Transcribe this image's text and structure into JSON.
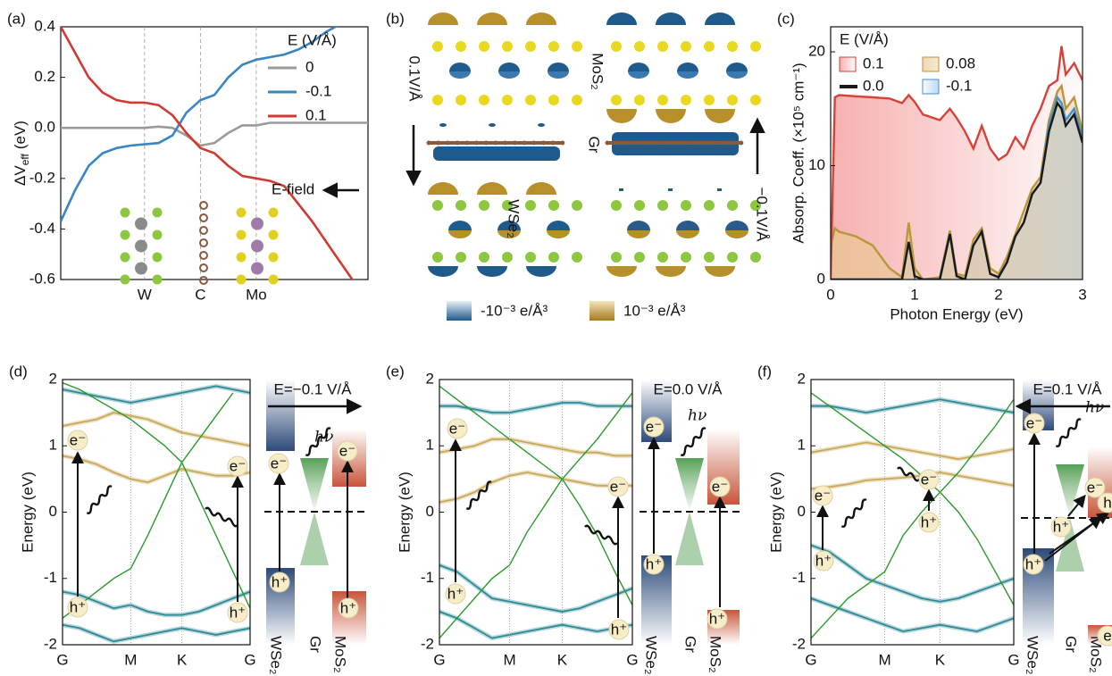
{
  "chart_data": [
    {
      "type": "line",
      "label": "(a)",
      "y_label": [
        "ΔV",
        "eff",
        "(eV)"
      ],
      "categories": [
        null,
        null,
        null,
        null,
        null,
        null,
        "W",
        null,
        null,
        null,
        "C",
        null,
        null,
        null,
        "Mo",
        null,
        null,
        null,
        null,
        null,
        null,
        null,
        null
      ],
      "ylim": [
        -0.6,
        0.4
      ],
      "yticks": [
        -0.6,
        -0.4,
        -0.2,
        {
          "value": 0,
          "label": "0.0"
        },
        0.2,
        0.4
      ],
      "legend": "upper right",
      "legend_title": "E (V/Å)",
      "annotation": "E-field",
      "series": [
        {
          "name": "0",
          "color": "#9a9a9a",
          "values": [
            0.0,
            0.0,
            0.0,
            0.0,
            0.0,
            0.0,
            0.0,
            0.005,
            0.0,
            -0.03,
            -0.07,
            -0.06,
            -0.02,
            0.01,
            0.01,
            0.02,
            0.02,
            0.02,
            0.02,
            0.02,
            0.02,
            0.02,
            0.02
          ]
        },
        {
          "name": "-0.1",
          "color": "#3a86c0",
          "values": [
            -0.37,
            -0.25,
            -0.15,
            -0.1,
            -0.08,
            -0.07,
            -0.065,
            -0.06,
            -0.03,
            0.06,
            0.11,
            0.13,
            0.2,
            0.25,
            0.27,
            0.28,
            0.29,
            0.31,
            0.34,
            0.38,
            0.41,
            null,
            null
          ]
        },
        {
          "name": "0.1",
          "color": "#d03a34",
          "values": [
            0.4,
            0.3,
            0.2,
            0.14,
            0.11,
            0.1,
            0.1,
            0.09,
            0.05,
            -0.02,
            -0.08,
            -0.1,
            -0.15,
            -0.19,
            -0.2,
            -0.21,
            -0.23,
            -0.3,
            -0.37,
            -0.45,
            -0.53,
            -0.61,
            null
          ]
        }
      ]
    },
    {
      "type": "area",
      "label": "(c)",
      "x_label": "Photon Energy (eV)",
      "y_label": "Absorp. Coeff. (×10⁵ cm⁻¹)",
      "x": [
        0,
        0.05,
        0.1,
        0.3,
        0.5,
        0.7,
        0.85,
        0.93,
        1.0,
        1.1,
        1.3,
        1.42,
        1.5,
        1.6,
        1.7,
        1.8,
        1.9,
        2.0,
        2.1,
        2.2,
        2.3,
        2.4,
        2.5,
        2.6,
        2.7,
        2.75,
        2.8,
        2.9,
        3.0
      ],
      "xlim": [
        0,
        3
      ],
      "xticks": [
        0,
        1,
        2,
        3
      ],
      "ylim": [
        0,
        22.2
      ],
      "yticks": [
        0,
        10,
        20
      ],
      "legend": "upper left",
      "legend_title": "E (V/Å)",
      "series": [
        {
          "name": "0.1",
          "color": "#d8413a",
          "fill": true,
          "values": [
            0,
            16,
            16.2,
            16.1,
            16,
            15.9,
            15.5,
            16.2,
            15.6,
            14.5,
            14,
            15,
            14.2,
            13,
            11.5,
            13.5,
            11.5,
            10.5,
            11,
            12.5,
            11.5,
            13.5,
            15,
            17,
            17.5,
            20.5,
            18,
            19,
            17.5
          ]
        },
        {
          "name": "0.08",
          "color": "#b8963a",
          "fill": true,
          "values": [
            3,
            4.5,
            4.2,
            3.8,
            3,
            1,
            0.2,
            5,
            1,
            0,
            0.2,
            4.3,
            0.5,
            0.3,
            3.5,
            4.5,
            1,
            0.5,
            2,
            4,
            6,
            8,
            9,
            14,
            16.5,
            17,
            15,
            16,
            13
          ]
        },
        {
          "name": "0.0",
          "color": "#1a1a1a",
          "fill": false,
          "values": [
            0,
            0,
            0,
            0,
            0,
            0,
            0,
            3.3,
            0.3,
            0,
            0,
            4,
            0.3,
            0,
            3,
            4.2,
            0.5,
            0.2,
            1.5,
            3.8,
            5,
            7.5,
            8.5,
            13,
            15.5,
            15,
            13.5,
            14.5,
            12
          ]
        },
        {
          "name": "-0.1",
          "color": "#4a8fc8",
          "fill": true,
          "values": [
            0,
            0,
            0,
            0,
            0,
            0,
            0,
            3.3,
            0.3,
            0,
            0,
            4,
            0.3,
            0,
            3,
            4.2,
            0.5,
            0.2,
            1.5,
            3.8,
            5,
            7.5,
            8.5,
            13.5,
            16,
            15.5,
            14,
            15,
            12.5
          ]
        }
      ]
    },
    {
      "type": "band",
      "label": "(d)",
      "y_label": "Energy (eV)",
      "categories": [
        "G",
        null,
        null,
        null,
        "M",
        null,
        null,
        "K",
        null,
        null,
        null,
        "G"
      ],
      "ylim": [
        -2,
        2
      ],
      "yticks": [
        -2,
        -1,
        0,
        1,
        2
      ],
      "field_label": "E=−0.1 V/Å",
      "field_color": "#1f3a6e",
      "photon": "hν",
      "materials": [
        "WSe₂",
        "Gr",
        "MoS₂"
      ],
      "carriers": [
        "e⁻",
        "h⁺",
        "e⁻",
        "h⁺",
        "e⁻",
        "h⁺",
        "e⁻",
        "h⁺"
      ],
      "series": [
        {
          "color": "#2e8a96",
          "values": [
            -1.2,
            -1.25,
            -1.35,
            -1.45,
            -1.4,
            -1.5,
            -1.55,
            -1.55,
            -1.5,
            -1.4,
            -1.3,
            -1.2
          ]
        },
        {
          "color": "#2e8a96",
          "values": [
            -1.7,
            -1.75,
            -1.85,
            -1.95,
            -1.9,
            -1.85,
            -1.8,
            -1.75,
            -1.8,
            -1.85,
            -1.8,
            -1.75
          ]
        },
        {
          "color": "#c9a95a",
          "values": [
            0.85,
            0.8,
            0.72,
            0.6,
            0.5,
            0.45,
            0.55,
            0.65,
            0.6,
            0.55,
            0.55,
            0.6
          ]
        },
        {
          "color": "#c9a95a",
          "values": [
            1.3,
            1.35,
            1.4,
            1.5,
            1.45,
            1.4,
            1.3,
            1.2,
            1.15,
            1.1,
            1.05,
            1.0
          ]
        },
        {
          "color": "#2e8a96",
          "values": [
            1.85,
            1.8,
            1.75,
            1.7,
            1.65,
            1.7,
            1.75,
            1.8,
            1.85,
            1.9,
            1.85,
            1.8
          ]
        },
        {
          "color": "#2a9a2a",
          "values": [
            -1.6,
            -1.4,
            -1.2,
            -1.0,
            -0.85,
            -0.35,
            0.2,
            0.75,
            0.2,
            -0.35,
            -0.9,
            -1.45
          ]
        },
        {
          "color": "#2a9a2a",
          "values": [
            1.95,
            1.85,
            1.7,
            1.55,
            1.4,
            1.2,
            1.0,
            0.75,
            1.1,
            1.45,
            1.8,
            null
          ]
        }
      ]
    },
    {
      "type": "band",
      "label": "(e)",
      "y_label": "Energy (eV)",
      "categories": [
        "G",
        null,
        null,
        null,
        "M",
        null,
        null,
        "K",
        null,
        null,
        null,
        "G"
      ],
      "ylim": [
        -2,
        2
      ],
      "yticks": [
        -2,
        -1,
        0,
        1,
        2
      ],
      "field_label": "E=0.0 V/Å",
      "field_color": "#111111",
      "photon": "hν",
      "materials": [
        "WSe₂",
        "Gr",
        "MoS₂"
      ],
      "carriers": [
        "e⁻",
        "h⁺",
        "e⁻",
        "h⁺",
        "e⁻",
        "h⁺",
        "e⁻",
        "h⁺"
      ],
      "series": [
        {
          "color": "#2e8a96",
          "values": [
            -0.8,
            -0.9,
            -1.1,
            -1.3,
            -1.35,
            -1.4,
            -1.45,
            -1.5,
            -1.45,
            -1.35,
            -1.25,
            -1.15
          ]
        },
        {
          "color": "#2e8a96",
          "values": [
            -1.5,
            -1.6,
            -1.75,
            -1.9,
            -1.85,
            -1.8,
            -1.75,
            -1.7,
            -1.75,
            -1.8,
            -1.75,
            -1.7
          ]
        },
        {
          "color": "#c9a95a",
          "values": [
            0.15,
            0.2,
            0.3,
            0.45,
            0.55,
            0.6,
            0.55,
            0.5,
            0.45,
            0.4,
            0.4,
            0.4
          ]
        },
        {
          "color": "#c9a95a",
          "values": [
            0.9,
            0.95,
            1.0,
            1.1,
            1.1,
            1.05,
            1.0,
            0.95,
            0.9,
            0.9,
            0.85,
            0.85
          ]
        },
        {
          "color": "#2e8a96",
          "values": [
            1.6,
            1.6,
            1.55,
            1.5,
            1.5,
            1.55,
            1.6,
            1.65,
            1.65,
            1.6,
            1.6,
            1.6
          ]
        },
        {
          "color": "#2a9a2a",
          "values": [
            -1.9,
            -1.6,
            -1.3,
            -1.0,
            -0.8,
            -0.3,
            0.1,
            0.5,
            0.1,
            -0.35,
            -0.9,
            -1.4
          ]
        },
        {
          "color": "#2a9a2a",
          "values": [
            1.9,
            1.7,
            1.5,
            1.3,
            1.1,
            0.9,
            0.7,
            0.5,
            0.8,
            1.1,
            1.45,
            1.8
          ]
        }
      ]
    },
    {
      "type": "band",
      "label": "(f)",
      "y_label": "Energy (eV)",
      "categories": [
        "G",
        null,
        null,
        null,
        "M",
        null,
        null,
        "K",
        null,
        null,
        null,
        "G"
      ],
      "ylim": [
        -2,
        2
      ],
      "yticks": [
        -2,
        -1,
        0,
        1,
        2
      ],
      "field_label": "E=0.1 V/Å",
      "field_color": "#c0302a",
      "photon": "hν",
      "materials": [
        "WSe₂",
        "Gr",
        "MoS₂"
      ],
      "carriers": [
        "e⁻",
        "h⁺",
        "e⁻",
        "h⁺",
        "e⁻",
        "h⁺",
        "e⁻",
        "h⁺",
        "e",
        "h"
      ],
      "series": [
        {
          "color": "#2e8a96",
          "values": [
            -0.5,
            -0.6,
            -0.8,
            -1.0,
            -1.1,
            -1.2,
            -1.3,
            -1.35,
            -1.3,
            -1.2,
            -1.1,
            -1.0
          ]
        },
        {
          "color": "#2e8a96",
          "values": [
            -1.3,
            -1.4,
            -1.5,
            -1.6,
            -1.7,
            -1.8,
            -1.75,
            -1.7,
            -1.75,
            -1.8,
            -1.7,
            -1.6
          ]
        },
        {
          "color": "#c9a95a",
          "values": [
            0.35,
            0.38,
            0.42,
            0.48,
            0.5,
            0.52,
            0.55,
            0.6,
            0.55,
            0.5,
            0.45,
            0.4
          ]
        },
        {
          "color": "#c9a95a",
          "values": [
            0.9,
            0.95,
            1.0,
            1.05,
            1.0,
            0.95,
            0.9,
            0.85,
            0.8,
            0.85,
            0.9,
            0.95
          ]
        },
        {
          "color": "#2e8a96",
          "values": [
            1.6,
            1.6,
            1.55,
            1.5,
            1.55,
            1.6,
            1.65,
            1.7,
            1.65,
            1.6,
            1.55,
            1.5
          ]
        },
        {
          "color": "#2a9a2a",
          "values": [
            -1.9,
            -1.6,
            -1.3,
            -1.1,
            -0.9,
            -0.35,
            0.0,
            0.3,
            0.0,
            -0.4,
            -0.9,
            -1.4
          ]
        },
        {
          "color": "#2a9a2a",
          "values": [
            1.8,
            1.6,
            1.4,
            1.2,
            1.0,
            0.8,
            0.55,
            0.3,
            0.6,
            0.95,
            1.3,
            1.7
          ]
        }
      ]
    }
  ],
  "panel_b": {
    "label": "(b)",
    "field_pos": "0.1V/Å",
    "field_neg": "−0.1V/Å",
    "layers": [
      "MoS₂",
      "Gr",
      "WSe₂"
    ],
    "legend": [
      "-10⁻³ e/Å³",
      "10⁻³ e/Å³"
    ]
  }
}
